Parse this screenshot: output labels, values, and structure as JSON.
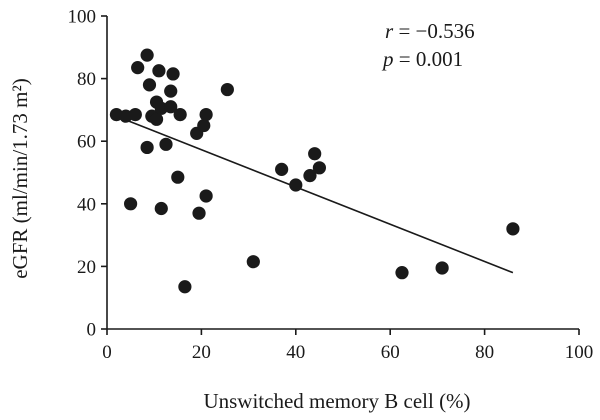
{
  "chart_data": {
    "type": "scatter",
    "title": "",
    "xlabel": "Unswitched memory B cell (%)",
    "ylabel": "eGFR (ml/min/1.73 m²)",
    "xlim": [
      0,
      100
    ],
    "ylim": [
      0,
      100
    ],
    "x_ticks": [
      0,
      20,
      40,
      60,
      80,
      100
    ],
    "y_ticks": [
      0,
      20,
      40,
      60,
      80,
      100
    ],
    "x_tick_labels": [
      "0",
      "20",
      "40",
      "60",
      "80",
      "100"
    ],
    "y_tick_labels": [
      "0",
      "20",
      "40",
      "60",
      "80",
      "100"
    ],
    "grid": false,
    "annotations": {
      "r_symbol": "r",
      "r_value": " = −0.536",
      "p_symbol": "p",
      "p_value": " = 0.001"
    },
    "regression_line": {
      "x": [
        2,
        86
      ],
      "y": [
        68,
        18
      ]
    },
    "point_color": "#1a1a1a",
    "points": [
      {
        "x": 2,
        "y": 68.5
      },
      {
        "x": 4,
        "y": 68
      },
      {
        "x": 5,
        "y": 40
      },
      {
        "x": 6,
        "y": 68.5
      },
      {
        "x": 6.5,
        "y": 83.5
      },
      {
        "x": 8.5,
        "y": 87.5
      },
      {
        "x": 8.5,
        "y": 58
      },
      {
        "x": 9,
        "y": 78
      },
      {
        "x": 9.5,
        "y": 68
      },
      {
        "x": 10.5,
        "y": 72.5
      },
      {
        "x": 10.5,
        "y": 67
      },
      {
        "x": 11,
        "y": 82.5
      },
      {
        "x": 11.5,
        "y": 70.5
      },
      {
        "x": 11.5,
        "y": 38.5
      },
      {
        "x": 12.5,
        "y": 59
      },
      {
        "x": 13.5,
        "y": 71
      },
      {
        "x": 13.5,
        "y": 76
      },
      {
        "x": 14,
        "y": 81.5
      },
      {
        "x": 15,
        "y": 48.5
      },
      {
        "x": 15.5,
        "y": 68.5
      },
      {
        "x": 16.5,
        "y": 13.5
      },
      {
        "x": 19,
        "y": 62.5
      },
      {
        "x": 19.5,
        "y": 37
      },
      {
        "x": 20.5,
        "y": 65
      },
      {
        "x": 21,
        "y": 68.5
      },
      {
        "x": 21,
        "y": 42.5
      },
      {
        "x": 25.5,
        "y": 76.5
      },
      {
        "x": 31,
        "y": 21.5
      },
      {
        "x": 37,
        "y": 51
      },
      {
        "x": 40,
        "y": 46
      },
      {
        "x": 43,
        "y": 49
      },
      {
        "x": 44,
        "y": 56
      },
      {
        "x": 45,
        "y": 51.5
      },
      {
        "x": 62.5,
        "y": 18
      },
      {
        "x": 71,
        "y": 19.5
      },
      {
        "x": 86,
        "y": 32
      }
    ]
  }
}
